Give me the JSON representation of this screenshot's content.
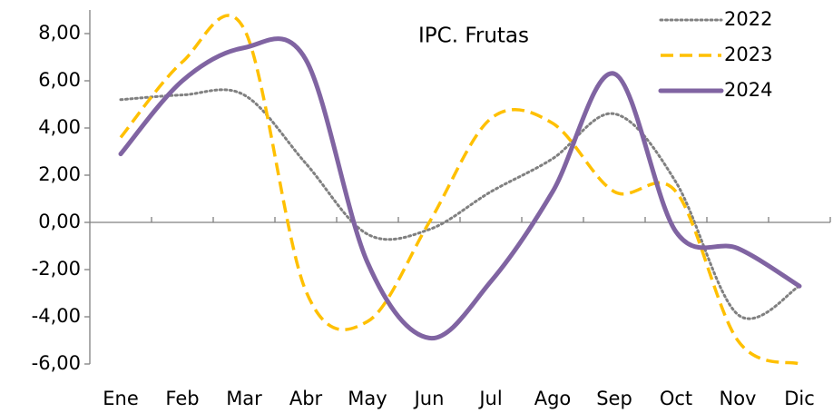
{
  "chart_data": {
    "type": "line",
    "title": "IPC. Frutas",
    "categories": [
      "Ene",
      "Feb",
      "Mar",
      "Abr",
      "May",
      "Jun",
      "Jul",
      "Ago",
      "Sep",
      "Oct",
      "Nov",
      "Dic"
    ],
    "series": [
      {
        "name": "2022",
        "color": "#808080",
        "values": [
          5.2,
          5.4,
          5.4,
          2.5,
          -0.5,
          -0.3,
          1.3,
          2.7,
          4.6,
          1.7,
          -3.9,
          -2.7
        ]
      },
      {
        "name": "2023",
        "color": "#ffc000",
        "values": [
          3.6,
          6.8,
          8.2,
          -2.9,
          -4.2,
          0.0,
          4.4,
          4.2,
          1.3,
          1.3,
          -5.0,
          -6.0
        ]
      },
      {
        "name": "2024",
        "color": "#8064a2",
        "values": [
          2.9,
          6.0,
          7.4,
          6.9,
          -1.7,
          -4.9,
          -2.5,
          1.3,
          6.3,
          -0.4,
          -1.1,
          -2.7
        ]
      }
    ],
    "ylim": [
      -6,
      9
    ],
    "yticks": [
      {
        "value": 8,
        "label": "8,00"
      },
      {
        "value": 6,
        "label": "6,00"
      },
      {
        "value": 4,
        "label": "4,00"
      },
      {
        "value": 2,
        "label": "2,00"
      },
      {
        "value": 0,
        "label": "0,00"
      },
      {
        "value": -2,
        "label": "-2,00"
      },
      {
        "value": -4,
        "label": "-4,00"
      },
      {
        "value": -6,
        "label": "-6,00"
      }
    ],
    "legend": "upper right",
    "grid": false
  }
}
